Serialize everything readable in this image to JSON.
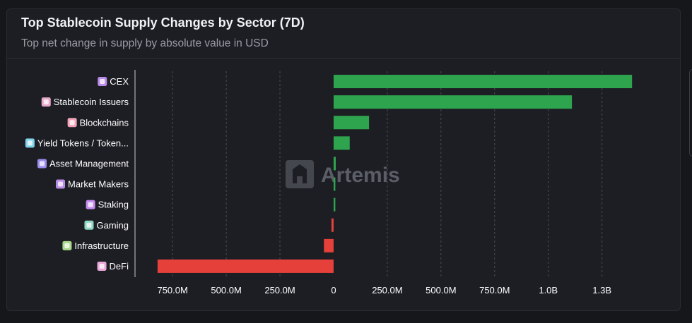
{
  "header": {
    "title": "Top Stablecoin Supply Changes by Sector (7D)",
    "subtitle": "Top net change in supply by absolute value in USD"
  },
  "watermark": {
    "text": "Artemis"
  },
  "colors": {
    "positive": "#2ea44f",
    "negative": "#e5403a",
    "grid": "#4a4c54",
    "background": "#1d1e24"
  },
  "chart_data": {
    "type": "bar",
    "orientation": "horizontal",
    "categories": [
      "CEX",
      "Stablecoin Issuers",
      "Blockchains",
      "Yield Tokens / Token...",
      "Asset Management",
      "Market Makers",
      "Staking",
      "Gaming",
      "Infrastructure",
      "DeFi"
    ],
    "category_icons": [
      "bank-icon",
      "coin-icon",
      "cube-icon",
      "yield-token-icon",
      "asset-management-icon",
      "bank-icon",
      "staking-icon",
      "gaming-icon",
      "infrastructure-icon",
      "defi-icon"
    ],
    "values": [
      1390000000,
      1110000000,
      165000000,
      75000000,
      10000000,
      8000000,
      8000000,
      -10000000,
      -45000000,
      -820000000
    ],
    "x_ticks": [
      -750000000,
      -500000000,
      -250000000,
      0,
      250000000,
      500000000,
      750000000,
      1000000000,
      1250000000
    ],
    "x_tick_labels": [
      "750.0M",
      "500.0M",
      "250.0M",
      "0",
      "250.0M",
      "500.0M",
      "750.0M",
      "1.0B",
      "1.3B"
    ],
    "xlim": [
      -925000000,
      1475000000
    ],
    "grid": true,
    "legend": "none"
  }
}
